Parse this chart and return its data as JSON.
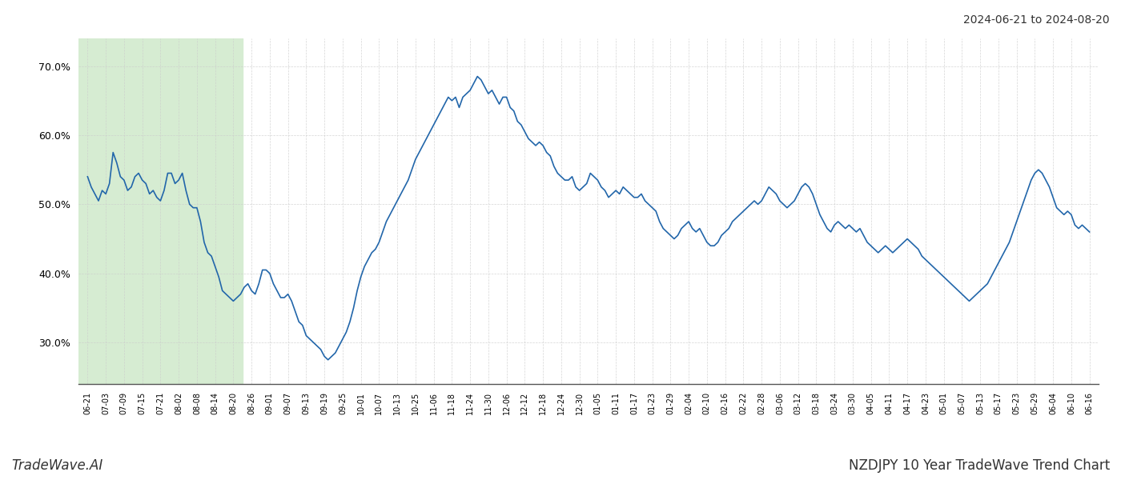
{
  "title_date": "2024-06-21 to 2024-08-20",
  "footer_left": "TradeWave.AI",
  "footer_right": "NZDJPY 10 Year TradeWave Trend Chart",
  "line_color": "#2266aa",
  "line_width": 1.2,
  "highlight_color": "#d6ecd2",
  "ylim": [
    24,
    74
  ],
  "yticks": [
    30.0,
    40.0,
    50.0,
    60.0,
    70.0
  ],
  "background_color": "#ffffff",
  "grid_color": "#cccccc",
  "x_labels": [
    "06-21",
    "07-03",
    "07-09",
    "07-15",
    "07-21",
    "08-02",
    "08-08",
    "08-14",
    "08-20",
    "08-26",
    "09-01",
    "09-07",
    "09-13",
    "09-19",
    "09-25",
    "10-01",
    "10-07",
    "10-13",
    "10-25",
    "11-06",
    "11-18",
    "11-24",
    "11-30",
    "12-06",
    "12-12",
    "12-18",
    "12-24",
    "12-30",
    "01-05",
    "01-11",
    "01-17",
    "01-23",
    "01-29",
    "02-04",
    "02-10",
    "02-16",
    "02-22",
    "02-28",
    "03-06",
    "03-12",
    "03-18",
    "03-24",
    "03-30",
    "04-05",
    "04-11",
    "04-17",
    "04-23",
    "05-01",
    "05-07",
    "05-13",
    "05-17",
    "05-23",
    "05-29",
    "06-04",
    "06-10",
    "06-16"
  ],
  "highlight_start_label": "06-21",
  "highlight_end_label": "08-20",
  "values": [
    54.0,
    52.5,
    51.5,
    50.5,
    52.0,
    51.5,
    53.0,
    57.5,
    56.0,
    54.0,
    53.5,
    52.0,
    52.5,
    54.0,
    54.5,
    53.5,
    53.0,
    51.5,
    52.0,
    51.0,
    50.5,
    52.0,
    54.5,
    54.5,
    53.0,
    53.5,
    54.5,
    52.0,
    50.0,
    49.5,
    49.5,
    47.5,
    44.5,
    43.0,
    42.5,
    41.0,
    39.5,
    37.5,
    37.0,
    36.5,
    36.0,
    36.5,
    37.0,
    38.0,
    38.5,
    37.5,
    37.0,
    38.5,
    40.5,
    40.5,
    40.0,
    38.5,
    37.5,
    36.5,
    36.5,
    37.0,
    36.0,
    34.5,
    33.0,
    32.5,
    31.0,
    30.5,
    30.0,
    29.5,
    29.0,
    28.0,
    27.5,
    28.0,
    28.5,
    29.5,
    30.5,
    31.5,
    33.0,
    35.0,
    37.5,
    39.5,
    41.0,
    42.0,
    43.0,
    43.5,
    44.5,
    46.0,
    47.5,
    48.5,
    49.5,
    50.5,
    51.5,
    52.5,
    53.5,
    55.0,
    56.5,
    57.5,
    58.5,
    59.5,
    60.5,
    61.5,
    62.5,
    63.5,
    64.5,
    65.5,
    65.0,
    65.5,
    64.0,
    65.5,
    66.0,
    66.5,
    67.5,
    68.5,
    68.0,
    67.0,
    66.0,
    66.5,
    65.5,
    64.5,
    65.5,
    65.5,
    64.0,
    63.5,
    62.0,
    61.5,
    60.5,
    59.5,
    59.0,
    58.5,
    59.0,
    58.5,
    57.5,
    57.0,
    55.5,
    54.5,
    54.0,
    53.5,
    53.5,
    54.0,
    52.5,
    52.0,
    52.5,
    53.0,
    54.5,
    54.0,
    53.5,
    52.5,
    52.0,
    51.0,
    51.5,
    52.0,
    51.5,
    52.5,
    52.0,
    51.5,
    51.0,
    51.0,
    51.5,
    50.5,
    50.0,
    49.5,
    49.0,
    47.5,
    46.5,
    46.0,
    45.5,
    45.0,
    45.5,
    46.5,
    47.0,
    47.5,
    46.5,
    46.0,
    46.5,
    45.5,
    44.5,
    44.0,
    44.0,
    44.5,
    45.5,
    46.0,
    46.5,
    47.5,
    48.0,
    48.5,
    49.0,
    49.5,
    50.0,
    50.5,
    50.0,
    50.5,
    51.5,
    52.5,
    52.0,
    51.5,
    50.5,
    50.0,
    49.5,
    50.0,
    50.5,
    51.5,
    52.5,
    53.0,
    52.5,
    51.5,
    50.0,
    48.5,
    47.5,
    46.5,
    46.0,
    47.0,
    47.5,
    47.0,
    46.5,
    47.0,
    46.5,
    46.0,
    46.5,
    45.5,
    44.5,
    44.0,
    43.5,
    43.0,
    43.5,
    44.0,
    43.5,
    43.0,
    43.5,
    44.0,
    44.5,
    45.0,
    44.5,
    44.0,
    43.5,
    42.5,
    42.0,
    41.5,
    41.0,
    40.5,
    40.0,
    39.5,
    39.0,
    38.5,
    38.0,
    37.5,
    37.0,
    36.5,
    36.0,
    36.5,
    37.0,
    37.5,
    38.0,
    38.5,
    39.5,
    40.5,
    41.5,
    42.5,
    43.5,
    44.5,
    46.0,
    47.5,
    49.0,
    50.5,
    52.0,
    53.5,
    54.5,
    55.0,
    54.5,
    53.5,
    52.5,
    51.0,
    49.5,
    49.0,
    48.5,
    49.0,
    48.5,
    47.0,
    46.5,
    47.0,
    46.5,
    46.0
  ]
}
